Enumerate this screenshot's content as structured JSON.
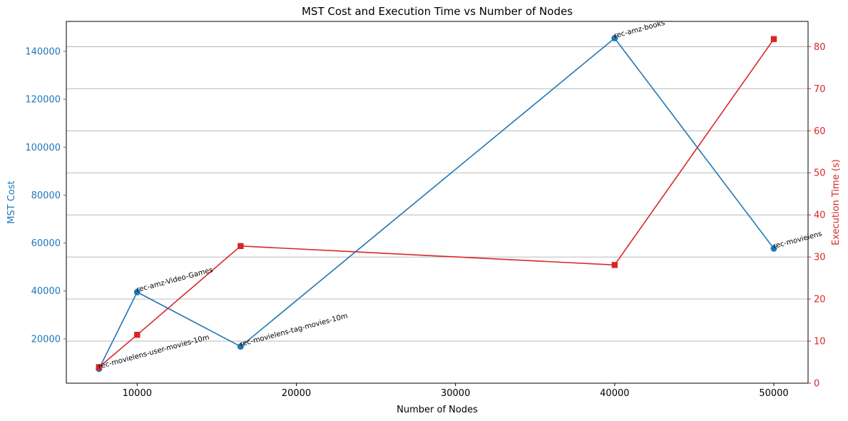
{
  "chart_data": {
    "type": "line",
    "title": "MST Cost and Execution Time vs Number of Nodes",
    "xlabel": "Number of Nodes",
    "ylabel": "MST Cost",
    "ylabel_right": "Execution Time (s)",
    "xlim": [
      5550,
      52150
    ],
    "ylim": [
      1500,
      152500
    ],
    "ylim_right": [
      0,
      86
    ],
    "x_ticks": [
      10000,
      20000,
      30000,
      40000,
      50000
    ],
    "y_ticks": [
      20000,
      40000,
      60000,
      80000,
      100000,
      120000,
      140000
    ],
    "y_ticks_right": [
      0,
      10,
      20,
      30,
      40,
      50,
      60,
      70,
      80
    ],
    "grid": "right-axis horizontal",
    "colors": {
      "left_series": "#1f77b4",
      "right_series": "#d62728",
      "grid": "#b0b0b0"
    },
    "series": [
      {
        "axis": "left",
        "marker": "circle",
        "x": [
          7600,
          10000,
          16500,
          40000,
          50000
        ],
        "values": [
          7500,
          39500,
          16800,
          145500,
          57700
        ]
      },
      {
        "axis": "right",
        "marker": "square",
        "x": [
          7600,
          10000,
          16500,
          40000,
          50000
        ],
        "values": [
          3.8,
          11.5,
          32.6,
          28.1,
          81.8
        ]
      }
    ],
    "annotations": [
      {
        "text": "rec-movielens-user-movies-10m",
        "x": 7600,
        "y": 7500
      },
      {
        "text": "rec-amz-Video-Games",
        "x": 10000,
        "y": 39500
      },
      {
        "text": "rec-movielens-tag-movies-10m",
        "x": 16500,
        "y": 16800
      },
      {
        "text": "rec-amz-books",
        "x": 40000,
        "y": 145500
      },
      {
        "text": "rec-movielens",
        "x": 50000,
        "y": 57700
      }
    ]
  }
}
